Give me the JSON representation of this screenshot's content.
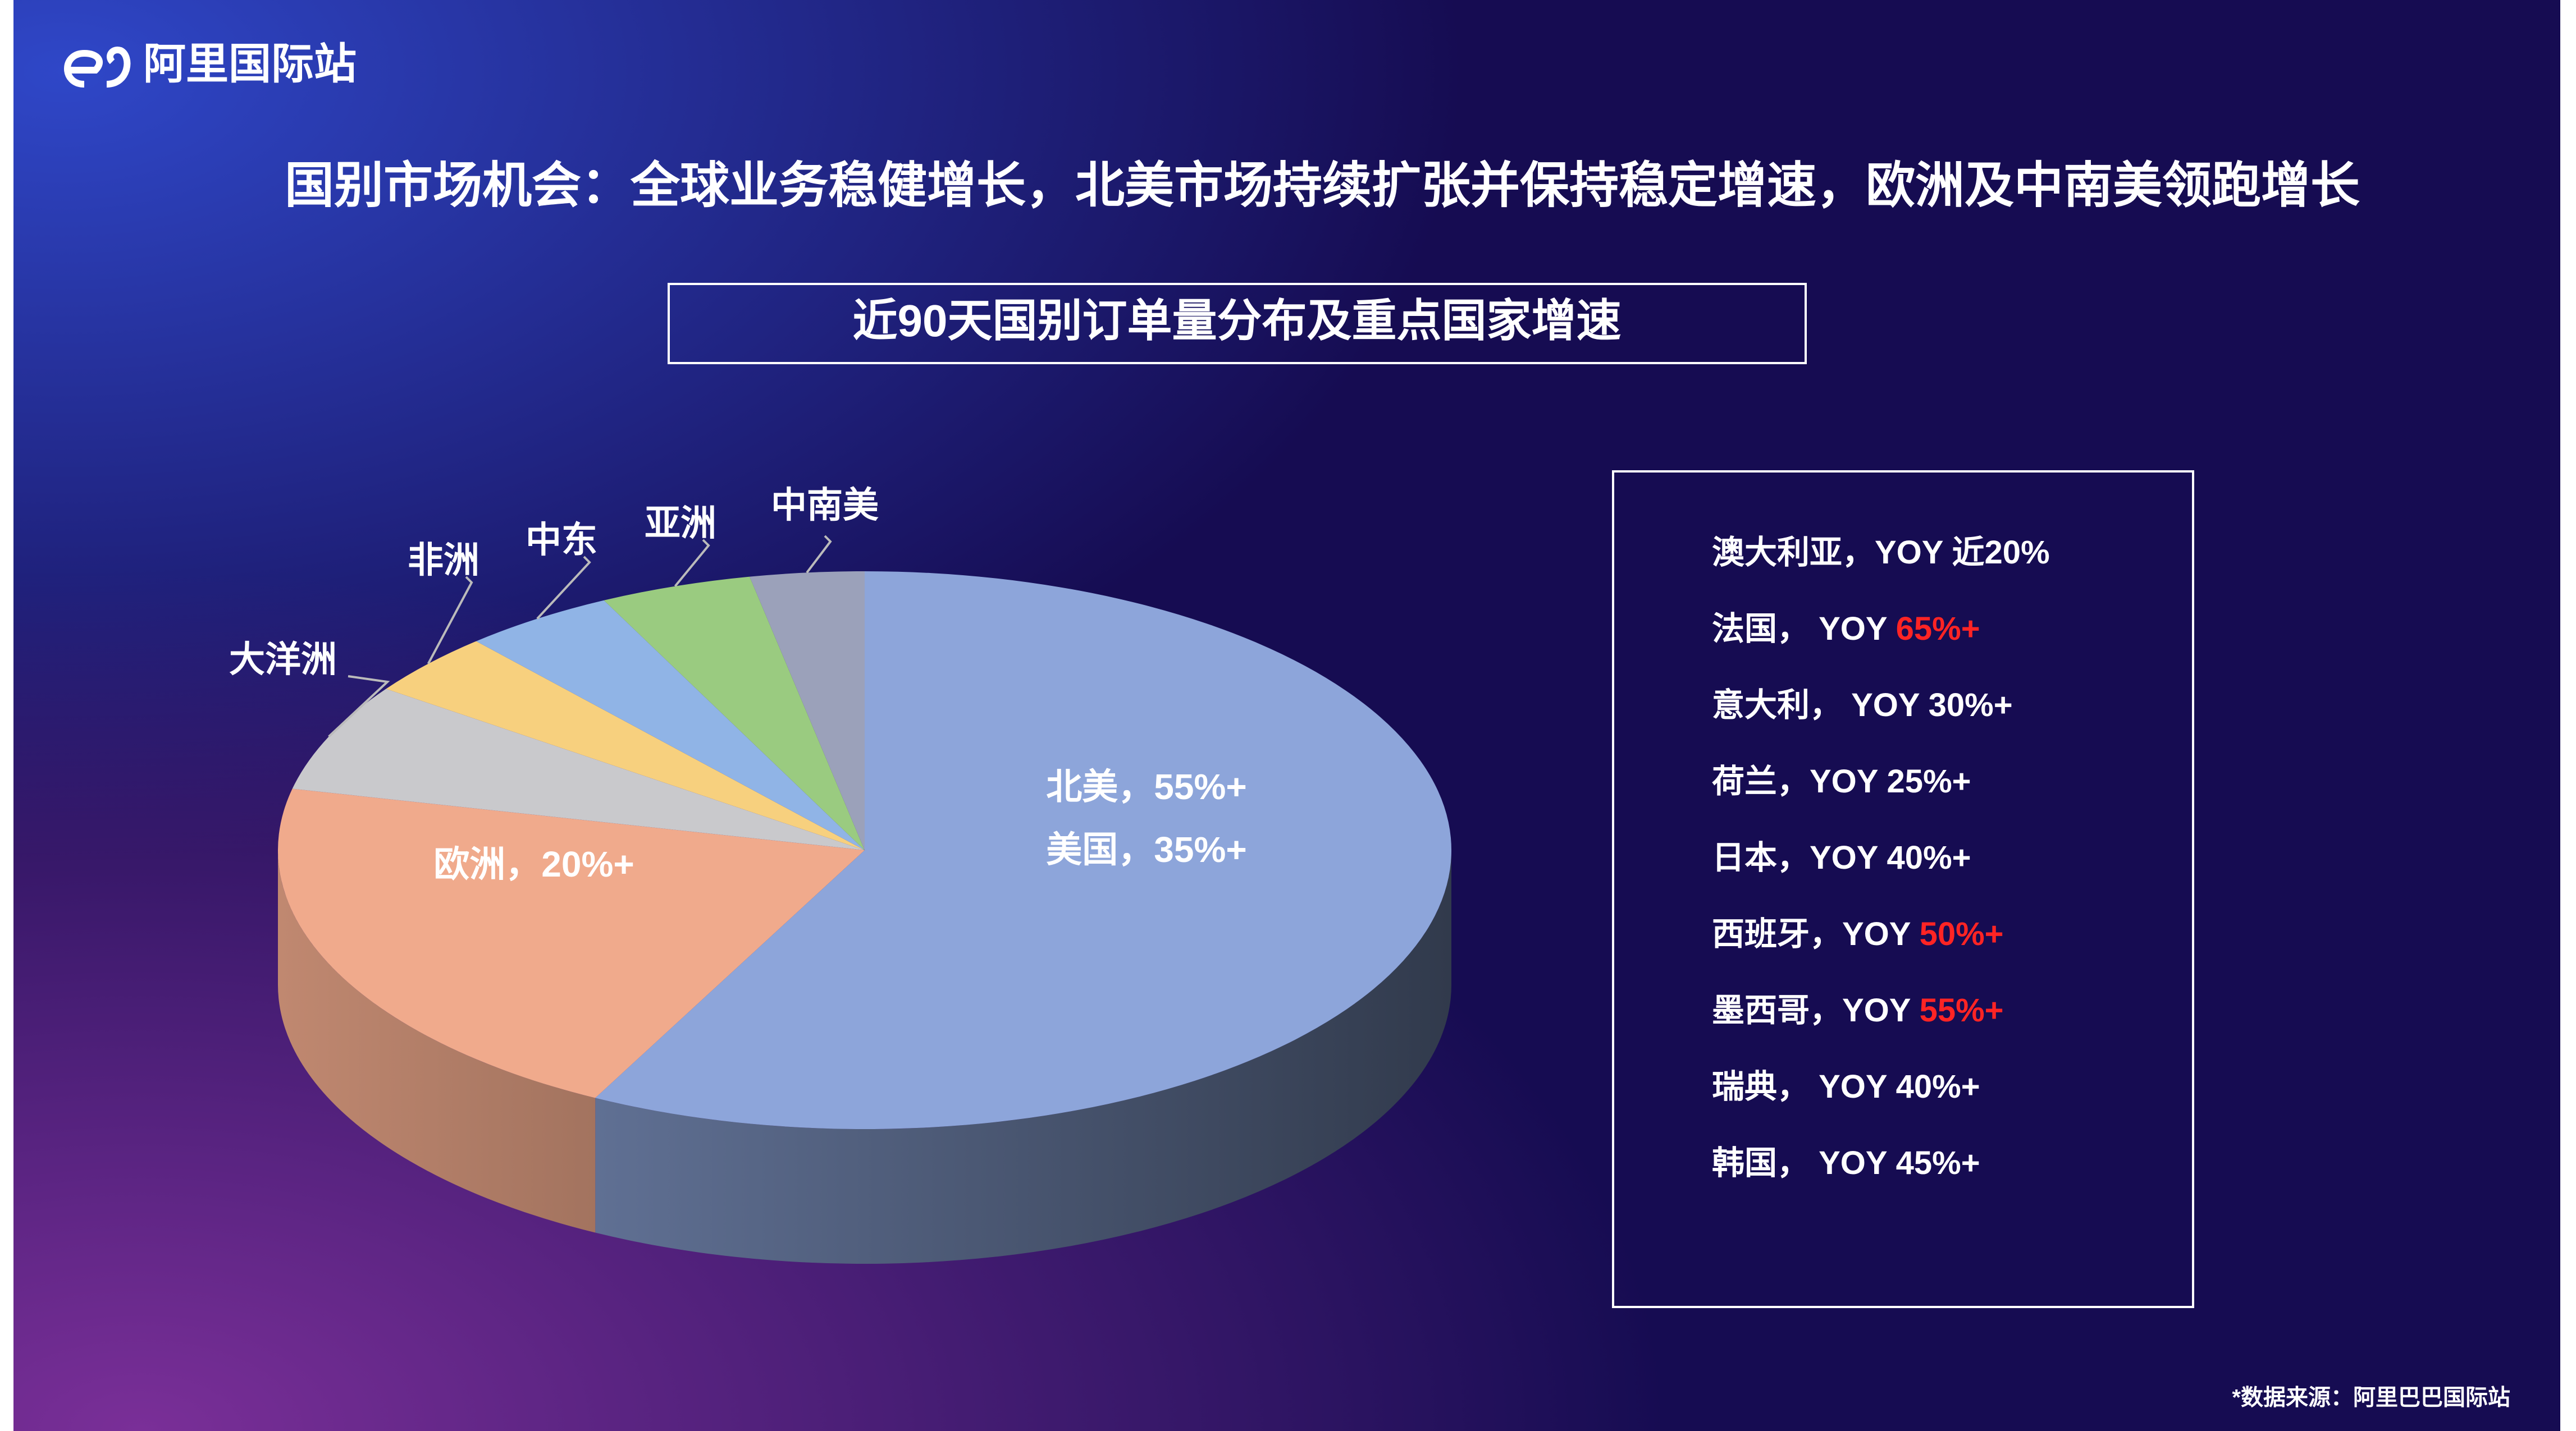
{
  "logo": "阿里国际站",
  "title": "国别市场机会：全球业务稳健增长，北美市场持续扩张并保持稳定增速，欧洲及中南美领跑增长",
  "chart_data": {
    "type": "pie",
    "title": "近90天国别订单量分布及重点国家增速",
    "categories": [
      null,
      null,
      "大洋洲",
      "非洲",
      "中东",
      "亚洲",
      "中南美"
    ],
    "values": [
      55,
      20,
      6,
      3.5,
      4,
      4,
      3
    ],
    "value_labels": [
      "北美，55%+",
      "欧洲，20%+",
      null,
      null,
      null,
      null,
      null
    ],
    "colors": [
      "#8da5da",
      "#f0aa8c",
      "#c9c9cc",
      "#f7d07e",
      "#90b4e6",
      "#9acb80",
      "#9ba1ba"
    ],
    "annotation": "美国，35%+"
  },
  "growth_list": {
    "highlight_color": "#ff2424",
    "items": [
      {
        "text": "澳大利亚，YOY 近20%"
      },
      {
        "text": "法国， YOY ",
        "highlight": "65%+"
      },
      {
        "text": "意大利， YOY 30%+"
      },
      {
        "text": "荷兰，YOY 25%+"
      },
      {
        "text": "日本，YOY 40%+"
      },
      {
        "text": "西班牙，YOY ",
        "highlight": "50%+"
      },
      {
        "text": "墨西哥，YOY ",
        "highlight": "55%+"
      },
      {
        "text": "瑞典，  YOY 40%+"
      },
      {
        "text": "韩国，  YOY 45%+"
      }
    ]
  },
  "source": "*数据来源：阿里巴巴国际站"
}
